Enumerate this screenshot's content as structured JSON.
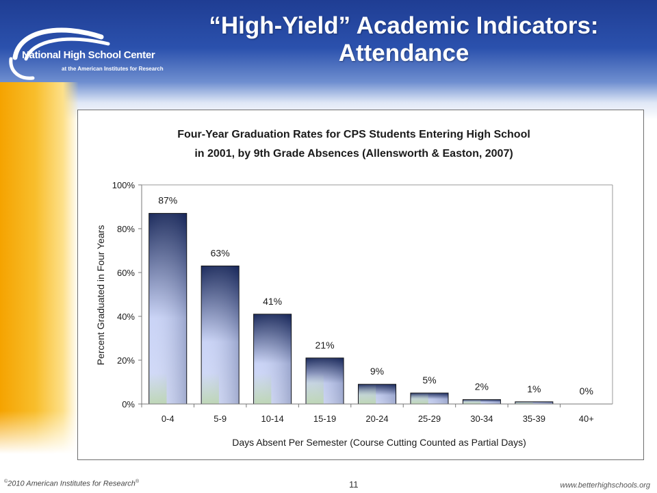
{
  "header": {
    "title_line1": "“High-Yield” Academic Indicators:",
    "title_line2": "Attendance",
    "logo_name": "National High School Center",
    "logo_subtitle": "at the American Institutes for Research"
  },
  "footer": {
    "copyright_mark": "©",
    "copyright_text": "2010 American Institutes for Research",
    "registered_mark": "®",
    "page_number": "11",
    "url": "www.betterhighschools.org"
  },
  "colors": {
    "bar_top": "#1b2a5c",
    "bar_bottom": "#d4dcf8",
    "bar_base_tint": "#bcd6b0",
    "header_blue": "#1f3d93",
    "gold": "#f5a300"
  },
  "chart_data": {
    "type": "bar",
    "title_line1": "Four-Year Graduation Rates for CPS Students Entering High School",
    "title_line2": "in 2001, by 9th Grade Absences (Allensworth & Easton, 2007)",
    "xlabel": "Days Absent Per Semester (Course Cutting Counted as Partial Days)",
    "ylabel": "Percent Graduated in Four Years",
    "categories": [
      "0-4",
      "5-9",
      "10-14",
      "15-19",
      "20-24",
      "25-29",
      "30-34",
      "35-39",
      "40+"
    ],
    "values": [
      87,
      63,
      41,
      21,
      9,
      5,
      2,
      1,
      0
    ],
    "data_labels": [
      "87%",
      "63%",
      "41%",
      "21%",
      "9%",
      "5%",
      "2%",
      "1%",
      "0%"
    ],
    "ylim": [
      0,
      100
    ],
    "y_ticks": [
      0,
      20,
      40,
      60,
      80,
      100
    ],
    "y_tick_labels": [
      "0%",
      "20%",
      "40%",
      "60%",
      "80%",
      "100%"
    ],
    "grid": false,
    "legend": "none"
  }
}
